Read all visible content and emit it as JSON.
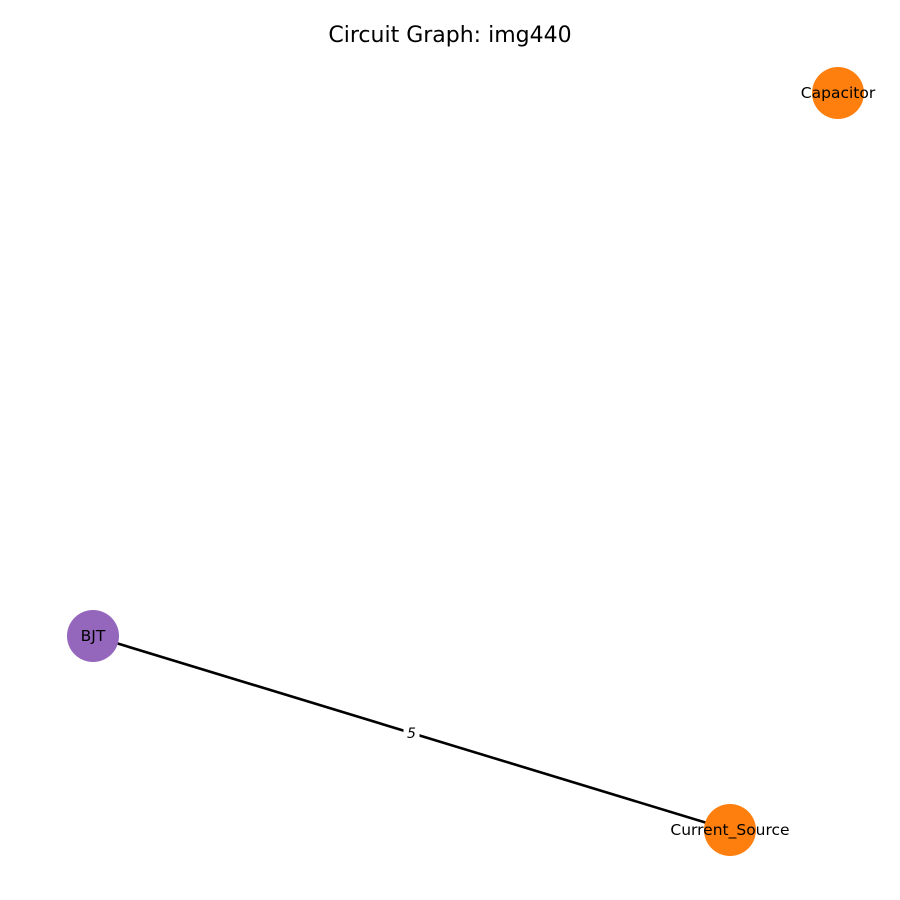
{
  "title": "Circuit Graph: img440",
  "graph": {
    "nodes": [
      {
        "id": "capacitor",
        "label": "Capacitor",
        "color": "#ff7f0e"
      },
      {
        "id": "bjt",
        "label": "BJT",
        "color": "#9467bd"
      },
      {
        "id": "current_source",
        "label": "Current_Source",
        "color": "#ff7f0e"
      }
    ],
    "edges": [
      {
        "source": "bjt",
        "target": "current_source",
        "label": "5",
        "color": "#000000"
      }
    ]
  }
}
